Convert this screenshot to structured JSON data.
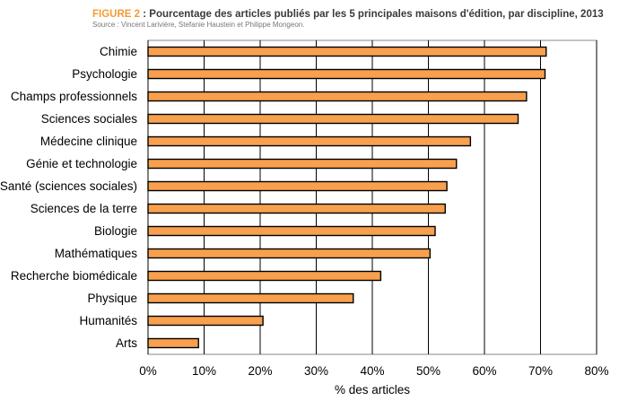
{
  "header": {
    "figure_label": "FIGURE 2",
    "separator": " : ",
    "title": "Pourcentage des articles publiés par les 5 principales maisons d'édition, par discipline, 2013",
    "source": "Source : Vincent Larivière, Stefanie Haustein et Philippe Mongeon."
  },
  "chart_data": {
    "type": "bar",
    "orientation": "horizontal",
    "categories": [
      "Chimie",
      "Psychologie",
      "Champs professionnels",
      "Sciences sociales",
      "Médecine clinique",
      "Génie et technologie",
      "Santé (sciences sociales)",
      "Sciences de la terre",
      "Biologie",
      "Mathématiques",
      "Recherche biomédicale",
      "Physique",
      "Humanités",
      "Arts"
    ],
    "values": [
      71,
      70.8,
      67.5,
      66,
      57.5,
      55,
      53.3,
      53,
      51.2,
      50.3,
      41.5,
      36.6,
      20.5,
      9
    ],
    "xlabel": "% des articles",
    "xlim": [
      0,
      80
    ],
    "xticks": [
      "0%",
      "10%",
      "20%",
      "30%",
      "40%",
      "50%",
      "60%",
      "70%",
      "80%"
    ],
    "grid": "vertical",
    "colors": {
      "bar_fill": "#f8a04d",
      "bar_stroke": "#000000",
      "grid": "#000000"
    }
  }
}
